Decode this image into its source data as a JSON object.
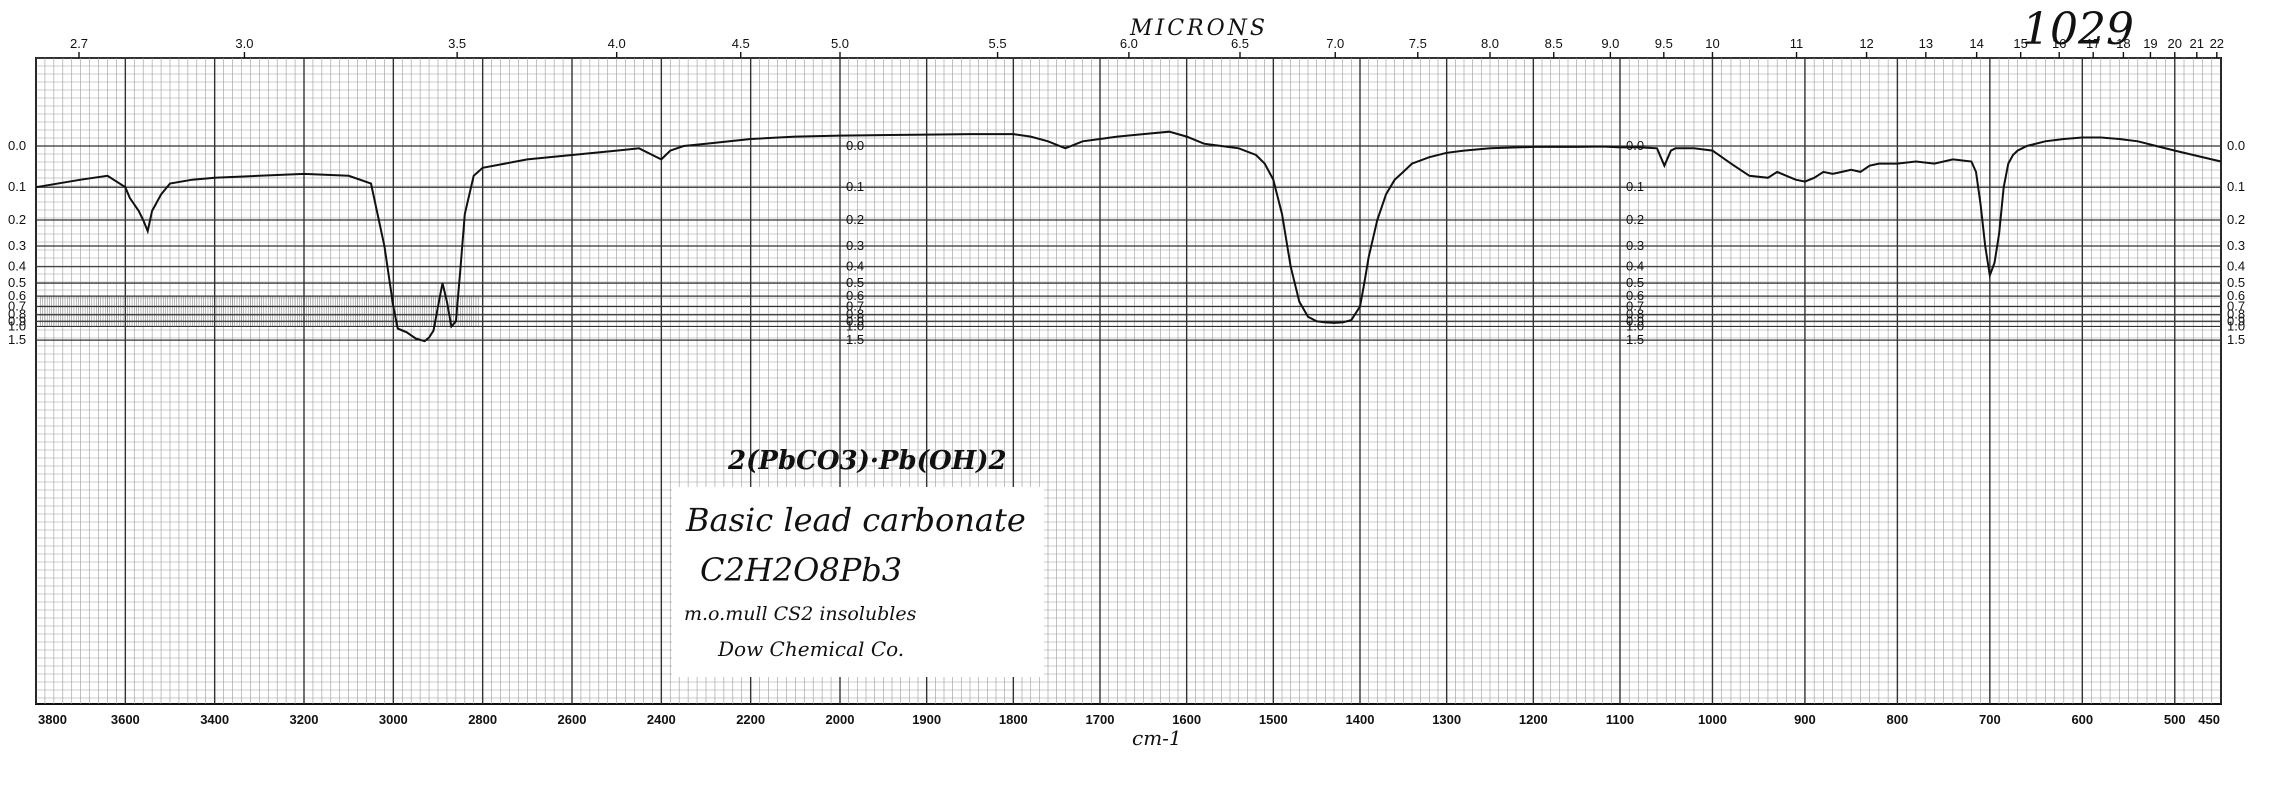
{
  "spectrum_id": "1029",
  "compound_formula": "2(PbCO3)·Pb(OH)2",
  "label": {
    "name": "Basic lead carbonate",
    "formula": "C2H2O8Pb3",
    "medium": "m.o.mull  CS2 insolubles",
    "source": "Dow Chemical Co."
  },
  "chart_data": {
    "type": "line",
    "title": "",
    "top_axis_title": "MICRONS",
    "xlabel": "cm-1",
    "ylabel": "",
    "x_range": [
      3800,
      450
    ],
    "y_range": [
      0,
      1.6
    ],
    "grid": true,
    "bottom_ticks": [
      "3800",
      "3600",
      "3400",
      "3200",
      "3000",
      "2800",
      "2600",
      "2400",
      "2200",
      "2000",
      "1900",
      "1800",
      "1700",
      "1600",
      "1500",
      "1400",
      "1300",
      "1200",
      "1100",
      "1000",
      "900",
      "800",
      "700",
      "600",
      "500",
      "450"
    ],
    "top_ticks": [
      "2.7",
      "3.0",
      "3.5",
      "4.0",
      "4.5",
      "5.0",
      "5.5",
      "6.0",
      "6.5",
      "7.0",
      "7.5",
      "8.0",
      "8.5",
      "9.0",
      "9.5",
      "10",
      "11",
      "12",
      "13",
      "14",
      "15",
      "16",
      "17",
      "18",
      "19",
      "20",
      "21",
      "22"
    ],
    "absorbance_ticks": [
      "0.0",
      "0.1",
      "0.2",
      "0.3",
      "0.4",
      "0.5",
      "0.6",
      "0.7",
      "0.8",
      "0.9",
      "1.0",
      "1.5"
    ],
    "series": [
      {
        "name": "",
        "x": [
          3800,
          3700,
          3640,
          3600,
          3590,
          3570,
          3560,
          3550,
          3540,
          3520,
          3500,
          3450,
          3400,
          3300,
          3200,
          3100,
          3050,
          3020,
          3000,
          2990,
          2970,
          2950,
          2930,
          2920,
          2910,
          2900,
          2890,
          2880,
          2870,
          2860,
          2850,
          2840,
          2820,
          2800,
          2750,
          2700,
          2600,
          2500,
          2450,
          2420,
          2400,
          2380,
          2350,
          2300,
          2200,
          2100,
          2000,
          1900,
          1850,
          1800,
          1780,
          1760,
          1740,
          1720,
          1700,
          1680,
          1650,
          1620,
          1600,
          1580,
          1560,
          1540,
          1520,
          1510,
          1500,
          1490,
          1480,
          1470,
          1460,
          1450,
          1440,
          1430,
          1420,
          1410,
          1400,
          1395,
          1390,
          1380,
          1370,
          1360,
          1350,
          1340,
          1320,
          1300,
          1280,
          1250,
          1200,
          1150,
          1120,
          1100,
          1080,
          1060,
          1052,
          1045,
          1040,
          1020,
          1000,
          980,
          960,
          940,
          930,
          920,
          910,
          900,
          890,
          880,
          870,
          860,
          850,
          840,
          830,
          820,
          800,
          780,
          760,
          740,
          720,
          715,
          710,
          705,
          700,
          695,
          690,
          685,
          680,
          675,
          670,
          665,
          660,
          640,
          620,
          600,
          580,
          560,
          540,
          520,
          500,
          480,
          460,
          450
        ],
        "y": [
          0.1,
          0.08,
          0.07,
          0.1,
          0.13,
          0.17,
          0.2,
          0.24,
          0.17,
          0.12,
          0.09,
          0.08,
          0.075,
          0.07,
          0.065,
          0.07,
          0.09,
          0.3,
          0.7,
          1.05,
          1.15,
          1.4,
          1.58,
          1.35,
          1.1,
          0.7,
          0.5,
          0.65,
          1.0,
          0.9,
          0.42,
          0.18,
          0.07,
          0.05,
          0.04,
          0.03,
          0.02,
          0.01,
          0.005,
          0.02,
          0.03,
          0.01,
          0.0,
          -0.005,
          -0.015,
          -0.02,
          -0.022,
          -0.024,
          -0.025,
          -0.025,
          -0.02,
          -0.01,
          0.005,
          -0.01,
          -0.015,
          -0.02,
          -0.025,
          -0.03,
          -0.02,
          -0.005,
          0.0,
          0.005,
          0.02,
          0.04,
          0.08,
          0.18,
          0.4,
          0.65,
          0.83,
          0.9,
          0.92,
          0.93,
          0.92,
          0.88,
          0.7,
          0.5,
          0.35,
          0.2,
          0.12,
          0.08,
          0.06,
          0.04,
          0.025,
          0.015,
          0.01,
          0.005,
          0.002,
          0.002,
          0.001,
          0.003,
          0.003,
          0.005,
          0.045,
          0.01,
          0.005,
          0.005,
          0.01,
          0.04,
          0.07,
          0.075,
          0.06,
          0.07,
          0.08,
          0.085,
          0.075,
          0.06,
          0.065,
          0.06,
          0.055,
          0.06,
          0.045,
          0.04,
          0.04,
          0.035,
          0.04,
          0.03,
          0.035,
          0.06,
          0.15,
          0.3,
          0.45,
          0.38,
          0.25,
          0.1,
          0.04,
          0.02,
          0.01,
          0.005,
          0.0,
          -0.01,
          -0.015,
          -0.018,
          -0.018,
          -0.015,
          -0.01,
          0.0,
          0.01,
          0.02,
          0.03,
          0.035
        ]
      }
    ]
  }
}
